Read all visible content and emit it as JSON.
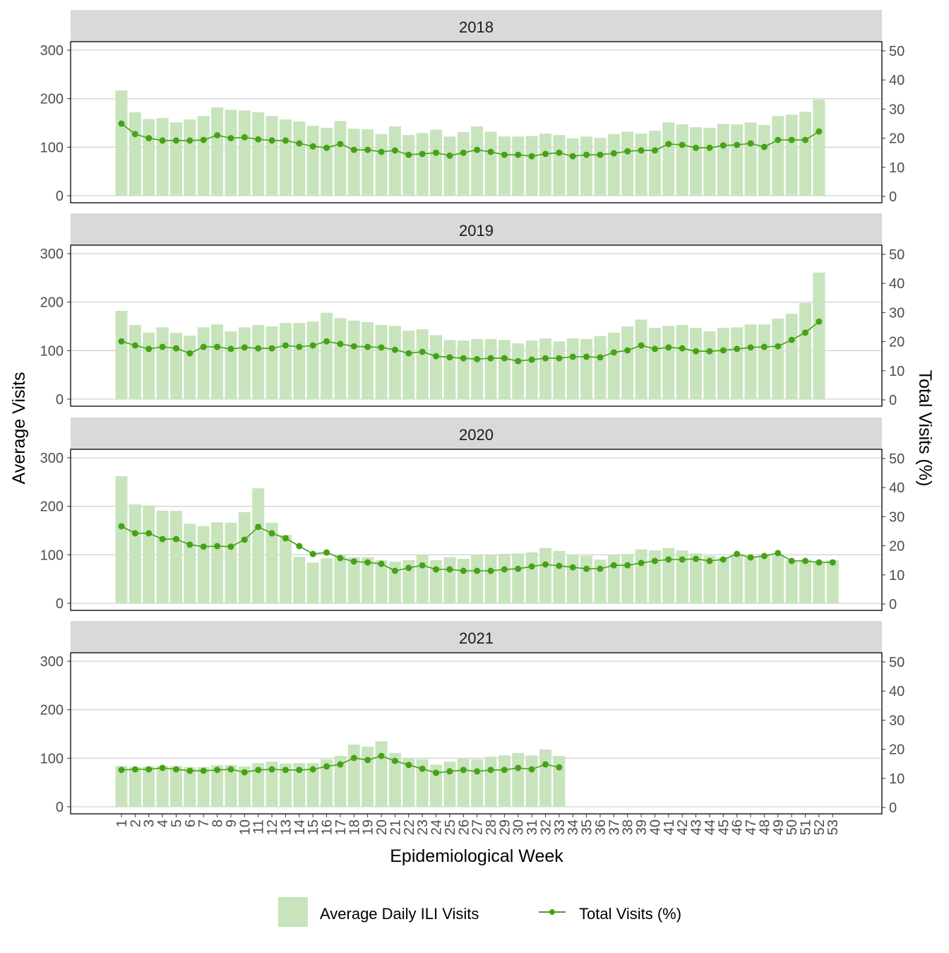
{
  "chart_data": {
    "type": "bar+line",
    "xlabel": "Epidemiological Week",
    "ylabel": "Average Visits",
    "ylabel_right": "Total Visits (%)",
    "ylim": [
      0,
      300
    ],
    "ylim_right": [
      0,
      50
    ],
    "yticks": [
      0,
      100,
      200,
      300
    ],
    "yticks_right": [
      0,
      10,
      20,
      30,
      40,
      50
    ],
    "x_ticks": [
      1,
      2,
      3,
      4,
      5,
      6,
      7,
      8,
      9,
      10,
      11,
      12,
      13,
      14,
      15,
      16,
      17,
      18,
      19,
      20,
      21,
      22,
      23,
      24,
      25,
      26,
      27,
      28,
      29,
      30,
      31,
      32,
      33,
      34,
      35,
      36,
      37,
      38,
      39,
      40,
      41,
      42,
      43,
      44,
      45,
      46,
      47,
      48,
      49,
      50,
      51,
      52,
      53
    ],
    "grid": true,
    "legend_placement": "bottom",
    "legend": [
      {
        "label": "Average Daily ILI Visits",
        "kind": "bar"
      },
      {
        "label": "Total Visits (%)",
        "kind": "line"
      }
    ],
    "colors": {
      "bar": "#c8e4bc",
      "line": "#45a217",
      "strip": "#d9d9d9",
      "grid": "#d3d3d3"
    },
    "panels": [
      {
        "title": "2018",
        "bars": [
          217,
          172,
          158,
          160,
          151,
          157,
          164,
          182,
          177,
          176,
          172,
          164,
          157,
          153,
          144,
          140,
          154,
          138,
          137,
          127,
          143,
          125,
          129,
          136,
          122,
          131,
          143,
          132,
          122,
          122,
          123,
          128,
          125,
          118,
          122,
          119,
          127,
          132,
          128,
          134,
          151,
          147,
          141,
          140,
          148,
          147,
          151,
          146,
          164,
          167,
          173,
          198
        ],
        "line": [
          25,
          21.4,
          20,
          19.2,
          19.2,
          19.2,
          19.4,
          21,
          20,
          20.3,
          19.6,
          19.2,
          19.2,
          18.2,
          17.2,
          16.7,
          18,
          16,
          16,
          15.3,
          15.8,
          14.3,
          14.6,
          15,
          14,
          15,
          16,
          15.3,
          14.3,
          14.3,
          13.8,
          14.6,
          15,
          13.8,
          14.3,
          14.3,
          14.8,
          15.5,
          15.8,
          15.8,
          18,
          17.7,
          16.7,
          16.7,
          17.5,
          17.7,
          18.2,
          17,
          19.4,
          19.4,
          19.4,
          22.3
        ]
      },
      {
        "title": "2019",
        "bars": [
          182,
          153,
          137,
          148,
          137,
          131,
          148,
          154,
          140,
          148,
          153,
          150,
          157,
          157,
          160,
          178,
          167,
          162,
          159,
          153,
          151,
          141,
          144,
          132,
          122,
          121,
          124,
          124,
          122,
          115,
          121,
          125,
          119,
          125,
          124,
          130,
          137,
          150,
          164,
          147,
          151,
          153,
          147,
          140,
          147,
          148,
          154,
          154,
          166,
          176,
          198,
          261
        ],
        "line": [
          20.1,
          18.7,
          17.5,
          18.2,
          17.7,
          16,
          18.2,
          18.2,
          17.5,
          18,
          17.7,
          17.7,
          18.7,
          18.2,
          18.7,
          20.1,
          19.2,
          18.4,
          18.2,
          18,
          17.2,
          16,
          16.5,
          15,
          14.6,
          14.3,
          14,
          14.3,
          14.3,
          13.3,
          13.8,
          14.3,
          14.3,
          14.8,
          14.8,
          14.6,
          16.3,
          17,
          18.7,
          17.5,
          18,
          17.7,
          16.7,
          16.7,
          17,
          17.5,
          18,
          18.2,
          18.4,
          20.6,
          23.1,
          26.9
        ]
      },
      {
        "title": "2020",
        "bars": [
          262,
          204,
          202,
          191,
          191,
          164,
          159,
          167,
          166,
          188,
          237,
          166,
          141,
          96,
          84,
          93,
          99,
          95,
          95,
          89,
          86,
          89,
          100,
          89,
          95,
          92,
          100,
          100,
          102,
          103,
          105,
          114,
          108,
          100,
          98,
          90,
          100,
          102,
          111,
          109,
          114,
          109,
          103,
          98,
          95,
          100,
          95,
          99,
          100,
          89,
          90,
          86,
          89
        ],
        "line": [
          26.7,
          24.3,
          24.3,
          22.3,
          22.3,
          20.4,
          19.7,
          19.9,
          19.7,
          22.1,
          26.5,
          24.3,
          22.6,
          19.9,
          17.2,
          17.7,
          15.8,
          14.6,
          14.3,
          13.8,
          11.4,
          12.4,
          13.3,
          11.9,
          11.9,
          11.4,
          11.4,
          11.4,
          11.9,
          12.1,
          12.9,
          13.6,
          13.1,
          12.6,
          12.1,
          12.1,
          13.3,
          13.3,
          14.1,
          14.8,
          15.3,
          15.3,
          15.5,
          14.8,
          15.3,
          17.2,
          16,
          16.5,
          17.5,
          14.8,
          14.8,
          14.3,
          14.3
        ]
      },
      {
        "title": "2021",
        "bars": [
          84,
          82,
          83,
          84,
          84,
          82,
          82,
          86,
          86,
          83,
          90,
          93,
          89,
          90,
          90,
          98,
          105,
          128,
          124,
          135,
          111,
          100,
          98,
          87,
          93,
          99,
          98,
          103,
          106,
          111,
          106,
          118,
          105
        ],
        "line": [
          12.9,
          13.1,
          13.1,
          13.6,
          13.1,
          12.6,
          12.6,
          12.9,
          13.1,
          12.1,
          12.9,
          13.1,
          12.9,
          12.9,
          13.1,
          14.1,
          14.8,
          17,
          16.3,
          17.7,
          16,
          14.6,
          13.3,
          11.9,
          12.4,
          12.9,
          12.4,
          12.9,
          12.9,
          13.6,
          13.1,
          14.8,
          13.8
        ]
      }
    ]
  }
}
